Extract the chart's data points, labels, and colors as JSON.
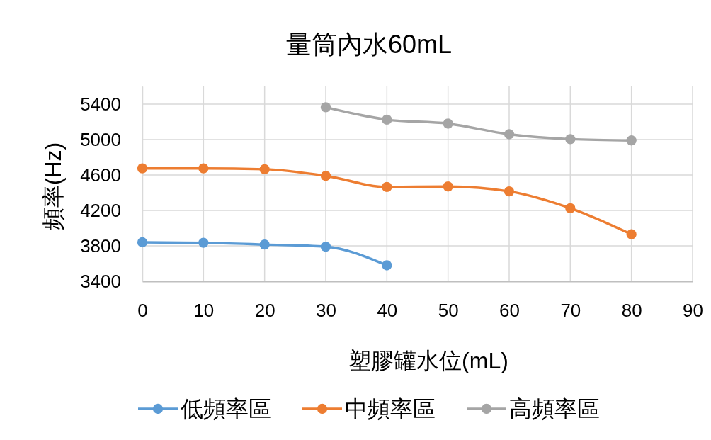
{
  "chart_data": {
    "type": "line",
    "title": "量筒內水60mL",
    "xlabel": "塑膠罐水位(mL)",
    "ylabel": "頻率(Hz)",
    "xlim": [
      0,
      90
    ],
    "xticks": [
      0,
      10,
      20,
      30,
      40,
      50,
      60,
      70,
      80,
      90
    ],
    "ylim": [
      3400,
      5600
    ],
    "yticks": [
      3400,
      3800,
      4200,
      4600,
      5000,
      5400
    ],
    "grid": true,
    "legend": "bottom",
    "marker": "circle",
    "line_style": "solid",
    "series": [
      {
        "name": "低頻率區",
        "color": "#5b9bd5",
        "x": [
          0,
          10,
          20,
          30,
          40
        ],
        "values": [
          3840,
          3835,
          3815,
          3790,
          3580
        ]
      },
      {
        "name": "中頻率區",
        "color": "#ed7d31",
        "x": [
          0,
          10,
          20,
          30,
          40,
          50,
          60,
          70,
          80
        ],
        "values": [
          4675,
          4675,
          4665,
          4590,
          4465,
          4470,
          4415,
          4225,
          3930
        ]
      },
      {
        "name": "高頻率區",
        "color": "#a5a5a5",
        "x": [
          30,
          40,
          50,
          60,
          70,
          80
        ],
        "values": [
          5365,
          5225,
          5180,
          5060,
          5005,
          4990
        ]
      }
    ]
  }
}
